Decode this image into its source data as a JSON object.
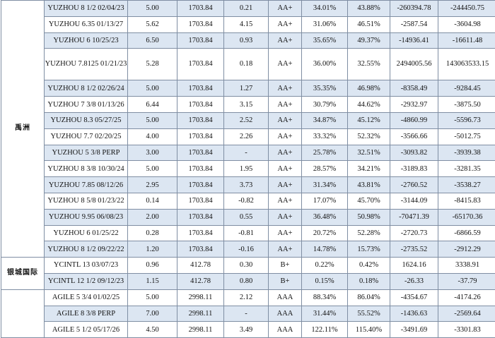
{
  "colors": {
    "row_alt": "#dce6f2",
    "border": "#7f8ea3"
  },
  "groups": [
    {
      "label": "禹洲",
      "rows": [
        [
          "YUZHOU 8 1/2 02/04/23",
          "5.00",
          "1703.84",
          "0.21",
          "AA+",
          "34.01%",
          "43.88%",
          "-260394.78",
          "-244450.75"
        ],
        [
          "YUZHOU 6.35 01/13/27",
          "5.62",
          "1703.84",
          "4.15",
          "AA+",
          "31.06%",
          "46.51%",
          "-2587.54",
          "-3604.98"
        ],
        [
          "YUZHOU 6 10/25/23",
          "6.50",
          "1703.84",
          "0.93",
          "AA+",
          "35.65%",
          "49.37%",
          "-14936.41",
          "-16611.48"
        ],
        [
          "YUZHOU 7.8125 01/21/23",
          "5.28",
          "1703.84",
          "0.18",
          "AA+",
          "36.00%",
          "32.55%",
          "2494005.56",
          "143063533.15"
        ],
        [
          "YUZHOU 8 1/2 02/26/24",
          "5.00",
          "1703.84",
          "1.27",
          "AA+",
          "35.35%",
          "46.98%",
          "-8358.49",
          "-9284.45"
        ],
        [
          "YUZHOU 7 3/8 01/13/26",
          "6.44",
          "1703.84",
          "3.15",
          "AA+",
          "30.79%",
          "44.62%",
          "-2932.97",
          "-3875.50"
        ],
        [
          "YUZHOU 8.3 05/27/25",
          "5.00",
          "1703.84",
          "2.52",
          "AA+",
          "34.87%",
          "45.12%",
          "-4860.99",
          "-5596.73"
        ],
        [
          "YUZHOU 7.7 02/20/25",
          "4.00",
          "1703.84",
          "2.26",
          "AA+",
          "33.32%",
          "52.32%",
          "-3566.66",
          "-5012.75"
        ],
        [
          "YUZHOU 5 3/8 PERP",
          "3.00",
          "1703.84",
          "-",
          "AA+",
          "25.78%",
          "32.51%",
          "-3093.82",
          "-3939.38"
        ],
        [
          "YUZHOU 8 3/8 10/30/24",
          "5.00",
          "1703.84",
          "1.95",
          "AA+",
          "28.57%",
          "34.21%",
          "-3189.83",
          "-3281.35"
        ],
        [
          "YUZHOU 7.85 08/12/26",
          "2.95",
          "1703.84",
          "3.73",
          "AA+",
          "31.34%",
          "43.81%",
          "-2760.52",
          "-3538.27"
        ],
        [
          "YUZHOU 8 5/8 01/23/22",
          "0.14",
          "1703.84",
          "-0.82",
          "AA+",
          "17.07%",
          "45.70%",
          "-3144.09",
          "-8415.83"
        ],
        [
          "YUZHOU 9.95 06/08/23",
          "2.00",
          "1703.84",
          "0.55",
          "AA+",
          "36.48%",
          "50.98%",
          "-70471.39",
          "-65170.36"
        ],
        [
          "YUZHOU 6 01/25/22",
          "0.28",
          "1703.84",
          "-0.81",
          "AA+",
          "20.72%",
          "52.28%",
          "-2720.73",
          "-6866.59"
        ],
        [
          "YUZHOU 8 1/2 09/22/22",
          "1.20",
          "1703.84",
          "-0.16",
          "AA+",
          "14.78%",
          "15.73%",
          "-2735.52",
          "-2912.29"
        ]
      ]
    },
    {
      "label": "银城国际",
      "rows": [
        [
          "YCINTL 13 03/07/23",
          "0.96",
          "412.78",
          "0.30",
          "B+",
          "0.22%",
          "0.42%",
          "1624.16",
          "3338.91"
        ],
        [
          "YCINTL 12 1/2 09/12/23",
          "1.15",
          "412.78",
          "0.80",
          "B+",
          "0.15%",
          "0.18%",
          "-26.33",
          "-37.79"
        ]
      ]
    },
    {
      "label": "",
      "rows": [
        [
          "AGILE 5 3/4 01/02/25",
          "5.00",
          "2998.11",
          "2.12",
          "AAA",
          "88.34%",
          "86.04%",
          "-4354.67",
          "-4174.26"
        ],
        [
          "AGILE 8 3/8 PERP",
          "7.00",
          "2998.11",
          "-",
          "AAA",
          "31.44%",
          "55.52%",
          "-1436.63",
          "-2569.64"
        ],
        [
          "AGILE 5 1/2 05/17/26",
          "4.50",
          "2998.11",
          "3.49",
          "AAA",
          "122.11%",
          "115.40%",
          "-3491.69",
          "-3301.83"
        ]
      ]
    }
  ]
}
